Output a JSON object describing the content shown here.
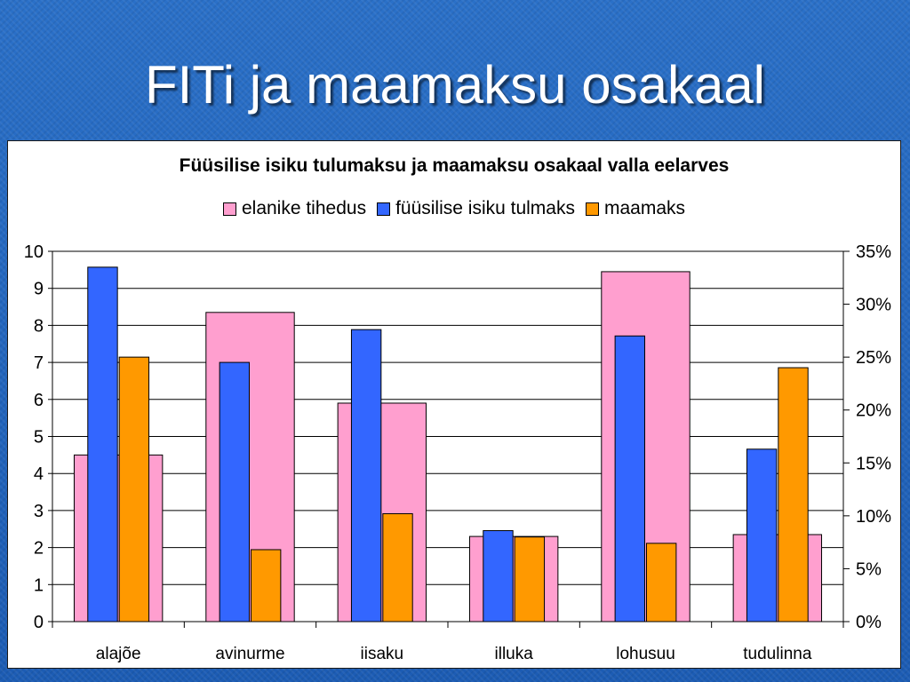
{
  "slide": {
    "title": "FITi ja maamaksu osakaal"
  },
  "colors": {
    "pink": "#ff9fcf",
    "blue": "#3366ff",
    "orange": "#ff9900",
    "background": "#1f63c0"
  },
  "chart_data": {
    "type": "bar",
    "title": "Füüsilise isiku tulumaksu ja maamaksu osakaal valla eelarves",
    "categories": [
      "alajõe",
      "avinurme",
      "iisaku",
      "illuka",
      "lohusuu",
      "tudulinna"
    ],
    "series": [
      {
        "name": "elanike tihedus",
        "axis": "left",
        "values": [
          4.5,
          8.35,
          5.9,
          2.3,
          9.45,
          2.35
        ]
      },
      {
        "name": "füüsilise isiku tulmaks",
        "axis": "right",
        "values": [
          0.335,
          0.245,
          0.276,
          0.086,
          0.27,
          0.163
        ]
      },
      {
        "name": "maamaks",
        "axis": "right",
        "values": [
          0.25,
          0.068,
          0.102,
          0.08,
          0.074,
          0.24
        ]
      }
    ],
    "y_left": {
      "ylim": [
        0,
        10
      ],
      "ticks": [
        "0",
        "1",
        "2",
        "3",
        "4",
        "5",
        "6",
        "7",
        "8",
        "9",
        "10"
      ]
    },
    "y_right": {
      "ylim": [
        0,
        0.35
      ],
      "ticks": [
        "0%",
        "5%",
        "10%",
        "15%",
        "20%",
        "25%",
        "30%",
        "35%"
      ]
    },
    "grid": true,
    "legend_position": "top"
  }
}
